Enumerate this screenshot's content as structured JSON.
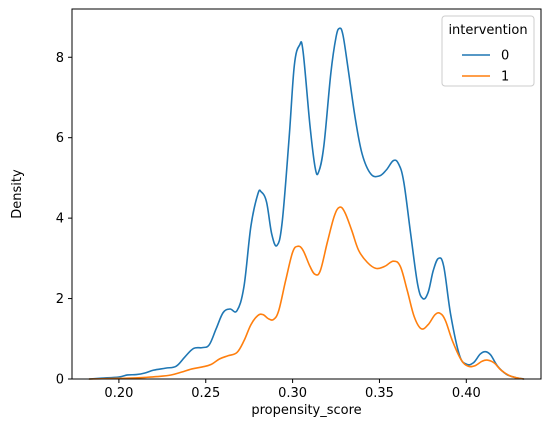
{
  "chart_data": {
    "type": "line",
    "subtype": "kde",
    "title": "",
    "xlabel": "propensity_score",
    "ylabel": "Density",
    "xlim": [
      0.173,
      0.443
    ],
    "ylim": [
      0,
      9.2
    ],
    "xticks": [
      0.2,
      0.25,
      0.3,
      0.35,
      0.4
    ],
    "xtick_labels": [
      "0.20",
      "0.25",
      "0.30",
      "0.35",
      "0.40"
    ],
    "yticks": [
      0,
      2,
      4,
      6,
      8
    ],
    "ytick_labels": [
      "0",
      "2",
      "4",
      "6",
      "8"
    ],
    "grid": false,
    "legend": {
      "title": "intervention",
      "placement": "top-right",
      "entries": [
        "0",
        "1"
      ]
    },
    "series": [
      {
        "name": "0",
        "color": "#1f77b4",
        "points": [
          [
            0.183,
            0.0
          ],
          [
            0.19,
            0.02
          ],
          [
            0.2,
            0.05
          ],
          [
            0.205,
            0.1
          ],
          [
            0.21,
            0.11
          ],
          [
            0.215,
            0.15
          ],
          [
            0.22,
            0.22
          ],
          [
            0.227,
            0.27
          ],
          [
            0.233,
            0.32
          ],
          [
            0.238,
            0.55
          ],
          [
            0.243,
            0.76
          ],
          [
            0.248,
            0.78
          ],
          [
            0.252,
            0.85
          ],
          [
            0.256,
            1.25
          ],
          [
            0.26,
            1.65
          ],
          [
            0.264,
            1.74
          ],
          [
            0.268,
            1.7
          ],
          [
            0.272,
            2.3
          ],
          [
            0.276,
            3.8
          ],
          [
            0.28,
            4.6
          ],
          [
            0.282,
            4.65
          ],
          [
            0.285,
            4.4
          ],
          [
            0.288,
            3.6
          ],
          [
            0.291,
            3.32
          ],
          [
            0.294,
            3.9
          ],
          [
            0.298,
            6.0
          ],
          [
            0.301,
            7.8
          ],
          [
            0.304,
            8.3
          ],
          [
            0.306,
            8.15
          ],
          [
            0.31,
            6.3
          ],
          [
            0.313,
            5.25
          ],
          [
            0.315,
            5.15
          ],
          [
            0.318,
            5.8
          ],
          [
            0.322,
            7.6
          ],
          [
            0.325,
            8.5
          ],
          [
            0.327,
            8.72
          ],
          [
            0.329,
            8.55
          ],
          [
            0.332,
            7.7
          ],
          [
            0.336,
            6.5
          ],
          [
            0.34,
            5.6
          ],
          [
            0.345,
            5.1
          ],
          [
            0.35,
            5.05
          ],
          [
            0.354,
            5.2
          ],
          [
            0.358,
            5.43
          ],
          [
            0.361,
            5.35
          ],
          [
            0.364,
            4.9
          ],
          [
            0.368,
            3.6
          ],
          [
            0.372,
            2.35
          ],
          [
            0.375,
            2.0
          ],
          [
            0.378,
            2.15
          ],
          [
            0.381,
            2.7
          ],
          [
            0.384,
            3.0
          ],
          [
            0.387,
            2.8
          ],
          [
            0.391,
            1.6
          ],
          [
            0.396,
            0.6
          ],
          [
            0.4,
            0.37
          ],
          [
            0.404,
            0.4
          ],
          [
            0.408,
            0.62
          ],
          [
            0.411,
            0.68
          ],
          [
            0.414,
            0.6
          ],
          [
            0.418,
            0.32
          ],
          [
            0.423,
            0.12
          ],
          [
            0.428,
            0.04
          ],
          [
            0.433,
            0.0
          ]
        ]
      },
      {
        "name": "1",
        "color": "#ff7f0e",
        "points": [
          [
            0.183,
            0.0
          ],
          [
            0.195,
            0.01
          ],
          [
            0.205,
            0.02
          ],
          [
            0.215,
            0.04
          ],
          [
            0.222,
            0.06
          ],
          [
            0.23,
            0.1
          ],
          [
            0.236,
            0.17
          ],
          [
            0.242,
            0.25
          ],
          [
            0.248,
            0.3
          ],
          [
            0.253,
            0.36
          ],
          [
            0.258,
            0.5
          ],
          [
            0.263,
            0.58
          ],
          [
            0.268,
            0.66
          ],
          [
            0.272,
            0.95
          ],
          [
            0.276,
            1.35
          ],
          [
            0.28,
            1.58
          ],
          [
            0.283,
            1.6
          ],
          [
            0.286,
            1.5
          ],
          [
            0.289,
            1.48
          ],
          [
            0.292,
            1.7
          ],
          [
            0.296,
            2.45
          ],
          [
            0.3,
            3.15
          ],
          [
            0.303,
            3.3
          ],
          [
            0.306,
            3.2
          ],
          [
            0.31,
            2.8
          ],
          [
            0.313,
            2.6
          ],
          [
            0.316,
            2.7
          ],
          [
            0.32,
            3.4
          ],
          [
            0.324,
            4.05
          ],
          [
            0.327,
            4.27
          ],
          [
            0.33,
            4.15
          ],
          [
            0.334,
            3.7
          ],
          [
            0.338,
            3.2
          ],
          [
            0.343,
            2.9
          ],
          [
            0.348,
            2.75
          ],
          [
            0.353,
            2.8
          ],
          [
            0.358,
            2.93
          ],
          [
            0.362,
            2.8
          ],
          [
            0.366,
            2.2
          ],
          [
            0.37,
            1.55
          ],
          [
            0.374,
            1.25
          ],
          [
            0.378,
            1.35
          ],
          [
            0.382,
            1.6
          ],
          [
            0.385,
            1.63
          ],
          [
            0.388,
            1.45
          ],
          [
            0.392,
            0.95
          ],
          [
            0.397,
            0.48
          ],
          [
            0.401,
            0.32
          ],
          [
            0.405,
            0.33
          ],
          [
            0.409,
            0.44
          ],
          [
            0.412,
            0.47
          ],
          [
            0.416,
            0.4
          ],
          [
            0.42,
            0.22
          ],
          [
            0.425,
            0.08
          ],
          [
            0.43,
            0.02
          ],
          [
            0.433,
            0.0
          ]
        ]
      }
    ]
  }
}
